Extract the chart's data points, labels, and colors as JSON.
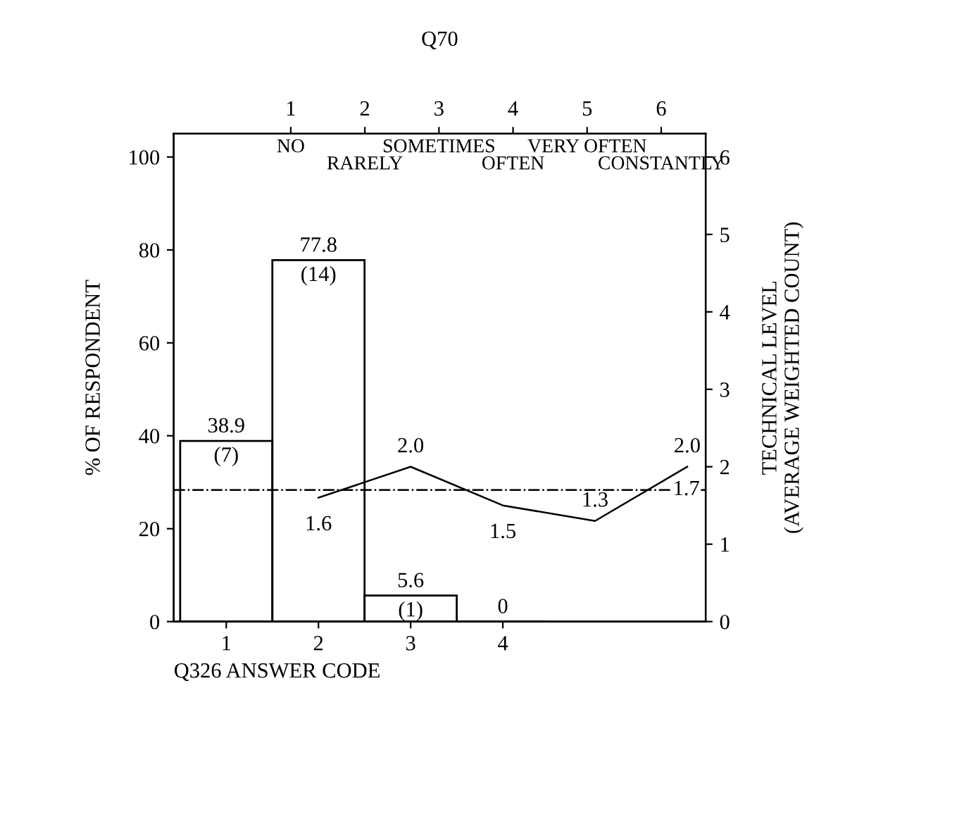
{
  "chart_data": {
    "type": "bar",
    "xlabel": "Q326 ANSWER CODE",
    "ylabel": "% OF RESPONDENT",
    "y2label": "TECHNICAL LEVEL\n(AVERAGE WEIGHTED COUNT)",
    "x2label": "Q70",
    "x": [
      1,
      2,
      3,
      4
    ],
    "series": [
      {
        "color": "#000000",
        "values": [
          38.9,
          77.8,
          5.6,
          0
        ],
        "value_labels": [
          "38.9",
          "77.8",
          "5.6",
          "0"
        ]
      },
      {
        "type": "line",
        "axis": "y2",
        "color": "#000000",
        "x": [
          2,
          3,
          4,
          5,
          6
        ],
        "values": [
          1.6,
          2.0,
          1.5,
          1.3,
          2.0
        ],
        "value_labels": [
          "1.6",
          "2.0",
          "1.5",
          "1.3",
          "2.0"
        ]
      }
    ],
    "xlim": [
      0.43,
      6.2
    ],
    "xticks": [
      1,
      2,
      3,
      4
    ],
    "x2lim": [
      -0.58,
      6.6
    ],
    "x2ticks": [
      1,
      2,
      3,
      4,
      5,
      6
    ],
    "ylim": [
      0,
      105
    ],
    "yticks": [
      0,
      20,
      40,
      60,
      80,
      100
    ],
    "y2lim": [
      0,
      6.3
    ],
    "y2ticks": [
      0,
      1,
      2,
      3,
      4,
      5,
      6
    ],
    "ref_lines": [
      {
        "axis": "y2",
        "value": 1.7,
        "label": "1.7",
        "line_style": "dashdot",
        "color": "#000000"
      }
    ],
    "annotations": [
      "(7)",
      "(14)",
      "(1)",
      "NO",
      "RARELY",
      "SOMETIMES",
      "OFTEN",
      "VERY OFTEN",
      "CONSTANTLY"
    ],
    "grid": false,
    "legend": false,
    "marker": "none",
    "line_style": "solid"
  }
}
